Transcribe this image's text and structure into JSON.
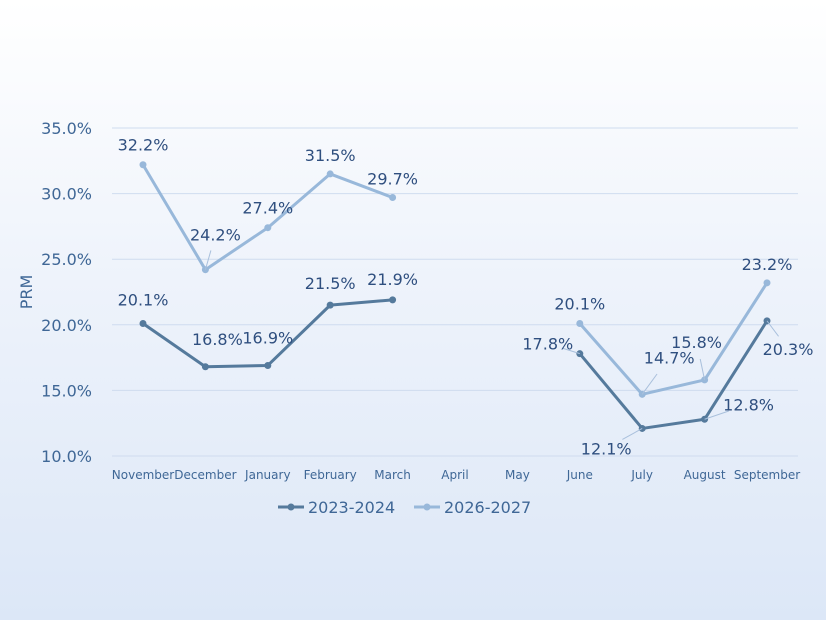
{
  "chart_data": {
    "type": "line",
    "title": "",
    "xlabel": "",
    "ylabel": "PRM",
    "ylim": [
      10,
      35
    ],
    "y_ticks": [
      "10.0%",
      "15.0%",
      "20.0%",
      "25.0%",
      "30.0%",
      "35.0%"
    ],
    "grid": true,
    "legend_position": "bottom",
    "categories": [
      "November",
      "December",
      "January",
      "February",
      "March",
      "April",
      "May",
      "June",
      "July",
      "August",
      "September"
    ],
    "series": [
      {
        "name": "2023-2024",
        "color": "#557a9c",
        "values": [
          20.1,
          16.8,
          16.9,
          21.5,
          21.9,
          null,
          null,
          17.8,
          12.1,
          12.8,
          20.3
        ],
        "labels": [
          "20.1%",
          "16.8%",
          "16.9%",
          "21.5%",
          "21.9%",
          null,
          null,
          "17.8%",
          "12.1%",
          "12.8%",
          "20.3%"
        ]
      },
      {
        "name": "2026-2027",
        "color": "#98b8da",
        "values": [
          32.2,
          24.2,
          27.4,
          31.5,
          29.7,
          null,
          null,
          20.1,
          14.7,
          15.8,
          23.2
        ],
        "labels": [
          "32.2%",
          "24.2%",
          "27.4%",
          "31.5%",
          "29.7%",
          null,
          null,
          "20.1%",
          "14.7%",
          "15.8%",
          "23.2%"
        ]
      }
    ]
  }
}
